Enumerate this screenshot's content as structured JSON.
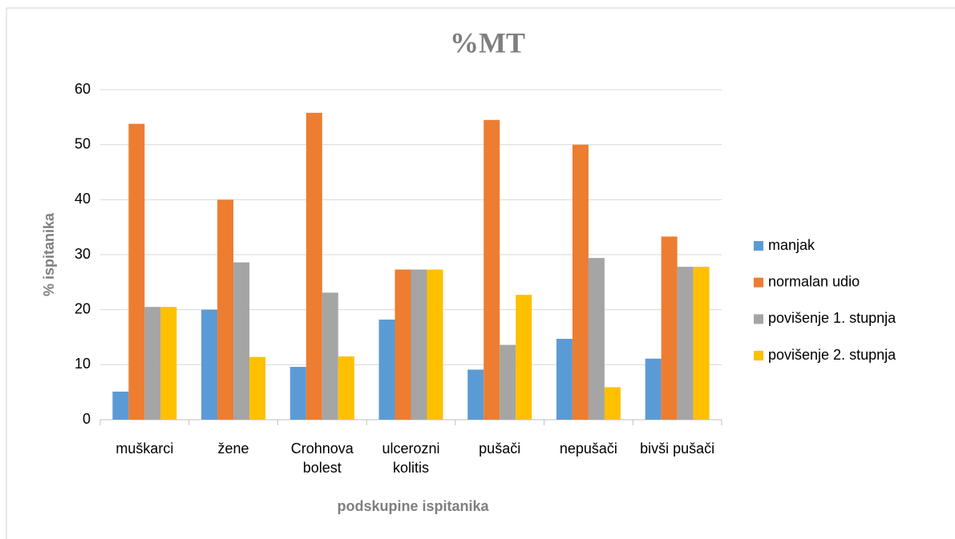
{
  "chart_data": {
    "type": "bar",
    "title": "%MT",
    "x_label": "podskupine ispitanika",
    "y_label": "% ispitanika",
    "categories": [
      "muškarci",
      "žene",
      "Crohnova bolest",
      "ulcerozni kolitis",
      "pušači",
      "nepušači",
      "bivši pušači"
    ],
    "series": [
      {
        "name": "manjak",
        "color": "#5b9bd5",
        "values": [
          5.1,
          20,
          9.6,
          18.2,
          9.1,
          14.7,
          11.1
        ]
      },
      {
        "name": "normalan udio",
        "color": "#ed7d31",
        "values": [
          53.8,
          40,
          55.8,
          27.3,
          54.5,
          50,
          33.3
        ]
      },
      {
        "name": "povišenje 1. stupnja",
        "color": "#a5a5a5",
        "values": [
          20.5,
          28.6,
          23.1,
          27.3,
          13.6,
          29.4,
          27.8
        ]
      },
      {
        "name": "povišenje 2. stupnja",
        "color": "#ffc000",
        "values": [
          20.5,
          11.4,
          11.5,
          27.3,
          22.7,
          5.9,
          27.8
        ]
      }
    ],
    "ylim": [
      0,
      60
    ],
    "yticks": [
      0,
      10,
      20,
      30,
      40,
      50,
      60
    ],
    "grid": true,
    "legend": "right"
  }
}
